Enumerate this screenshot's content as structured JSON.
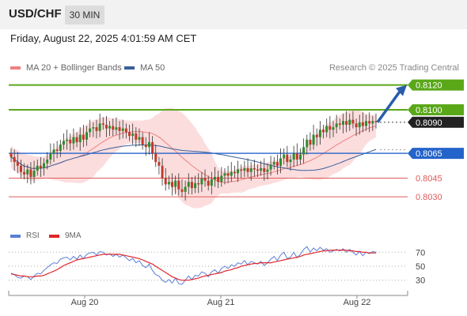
{
  "header": {
    "symbol": "USD/CHF",
    "timeframe": "30 MIN"
  },
  "datetime": "Friday, August 22, 2025 4:01:59 AM CET",
  "legend": {
    "bb": "MA 20 + Bollinger Bands",
    "ma50": "MA 50",
    "rsi": "RSI",
    "ma9": "9MA"
  },
  "copyright": "Research © 2025 Trading Central",
  "colors": {
    "resistance": "#5aa81a",
    "pivot": "#2463c9",
    "support": "#e05a5a",
    "up_candle": "#2e8b2e",
    "down_candle": "#c0392b",
    "bb": "#f08080",
    "ma50": "#3a5f9a",
    "rsi": "#5b7fd6",
    "rsi_ma": "#e0262b",
    "arrow": "#2a5caa"
  },
  "chart_data": [
    {
      "type": "candlestick",
      "x_ticks": [
        "Aug 20",
        "Aug 21",
        "Aug 22"
      ],
      "ylim": [
        0.8018,
        0.8128
      ],
      "current_price": 0.809,
      "target_arrow": {
        "from": 0.809,
        "to": 0.812
      },
      "levels": [
        {
          "value": 0.812,
          "label": "0.8120",
          "kind": "resistance"
        },
        {
          "value": 0.81,
          "label": "0.8100",
          "kind": "resistance"
        },
        {
          "value": 0.809,
          "label": "0.8090",
          "kind": "last"
        },
        {
          "value": 0.8065,
          "label": "0.8065",
          "kind": "pivot"
        },
        {
          "value": 0.8045,
          "label": "0.8045",
          "kind": "support"
        },
        {
          "value": 0.803,
          "label": "0.8030",
          "kind": "support"
        }
      ],
      "close": [
        0.8062,
        0.8058,
        0.8055,
        0.805,
        0.8048,
        0.8052,
        0.8046,
        0.8051,
        0.8055,
        0.8053,
        0.8057,
        0.806,
        0.8065,
        0.8068,
        0.8067,
        0.8072,
        0.8075,
        0.8076,
        0.8073,
        0.8078,
        0.8074,
        0.808,
        0.8076,
        0.8082,
        0.8085,
        0.8086,
        0.8083,
        0.8089,
        0.8088,
        0.8085,
        0.8087,
        0.8084,
        0.8086,
        0.8083,
        0.8085,
        0.8082,
        0.8079,
        0.8081,
        0.8076,
        0.8078,
        0.8072,
        0.807,
        0.8074,
        0.8065,
        0.8058,
        0.8055,
        0.8045,
        0.804,
        0.8042,
        0.8038,
        0.8043,
        0.8036,
        0.8034,
        0.8038,
        0.8042,
        0.8037,
        0.8041,
        0.804,
        0.8045,
        0.8043,
        0.8039,
        0.8044,
        0.8046,
        0.8042,
        0.8047,
        0.8049,
        0.8047,
        0.805,
        0.8049,
        0.8052,
        0.8051,
        0.8053,
        0.805,
        0.8053,
        0.8052,
        0.8051,
        0.8053,
        0.805,
        0.8052,
        0.8056,
        0.8058,
        0.8055,
        0.8061,
        0.8064,
        0.8058,
        0.806,
        0.8065,
        0.806,
        0.8064,
        0.807,
        0.8076,
        0.8072,
        0.808,
        0.8078,
        0.8084,
        0.8082,
        0.8087,
        0.8084,
        0.8086,
        0.8089,
        0.8088,
        0.8091,
        0.8088,
        0.8092,
        0.8089,
        0.8086,
        0.809,
        0.8087,
        0.8091,
        0.8089,
        0.8091,
        0.809
      ]
    },
    {
      "type": "line",
      "title": "RSI",
      "x_ticks": [
        "Aug 20",
        "Aug 21",
        "Aug 22"
      ],
      "y_ticks": [
        70,
        50,
        30
      ],
      "ylim": [
        15,
        85
      ],
      "series": [
        {
          "name": "RSI",
          "values": [
            40,
            38,
            34,
            33,
            36,
            35,
            31,
            36,
            40,
            39,
            44,
            48,
            52,
            55,
            54,
            60,
            62,
            63,
            59,
            64,
            60,
            66,
            61,
            67,
            69,
            70,
            66,
            71,
            70,
            66,
            68,
            64,
            67,
            63,
            66,
            62,
            58,
            61,
            55,
            58,
            51,
            48,
            53,
            44,
            38,
            36,
            30,
            27,
            31,
            26,
            33,
            25,
            24,
            30,
            36,
            31,
            37,
            36,
            42,
            40,
            35,
            42,
            45,
            40,
            47,
            50,
            47,
            52,
            50,
            55,
            53,
            58,
            52,
            57,
            55,
            53,
            57,
            51,
            55,
            60,
            64,
            58,
            66,
            70,
            61,
            63,
            70,
            62,
            67,
            74,
            78,
            70,
            76,
            72,
            77,
            73,
            75,
            70,
            72,
            74,
            72,
            75,
            70,
            74,
            70,
            66,
            71,
            65,
            70,
            68,
            71,
            70
          ]
        },
        {
          "name": "9MA",
          "values": [
            39,
            38,
            37,
            36,
            36,
            35,
            35,
            35,
            36,
            36,
            37,
            39,
            41,
            43,
            45,
            48,
            51,
            53,
            55,
            57,
            59,
            60,
            61,
            62,
            63,
            64,
            65,
            66,
            67,
            67,
            67,
            67,
            67,
            67,
            66,
            65,
            64,
            63,
            62,
            61,
            59,
            57,
            55,
            53,
            50,
            47,
            44,
            41,
            38,
            35,
            33,
            31,
            30,
            30,
            30,
            31,
            32,
            33,
            35,
            36,
            37,
            38,
            39,
            40,
            41,
            43,
            44,
            45,
            47,
            48,
            50,
            51,
            52,
            53,
            54,
            54,
            55,
            55,
            55,
            55,
            56,
            57,
            58,
            59,
            60,
            61,
            62,
            63,
            64,
            66,
            67,
            68,
            69,
            70,
            71,
            72,
            72,
            73,
            73,
            73,
            73,
            73,
            73,
            72,
            72,
            71,
            71,
            70,
            70,
            69,
            69,
            69
          ]
        }
      ]
    }
  ]
}
